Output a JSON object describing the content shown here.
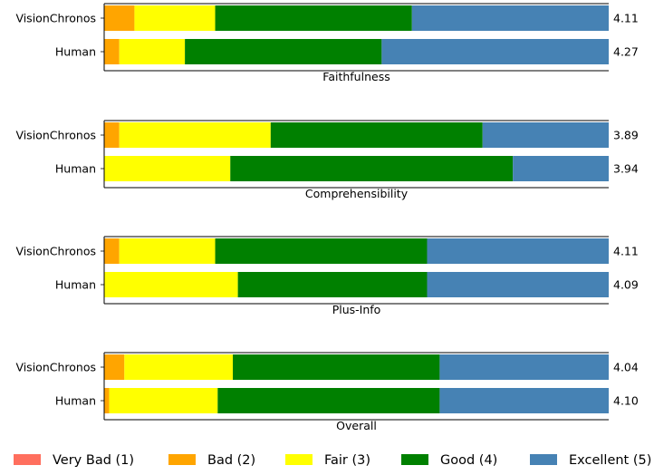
{
  "chart_data": {
    "type": "bar",
    "orientation": "horizontal",
    "stacked": true,
    "normalized_to": 1.0,
    "xlim": [
      0,
      1
    ],
    "legend_position": "bottom",
    "levels": [
      "Very Bad (1)",
      "Bad (2)",
      "Fair (3)",
      "Good (4)",
      "Excellent (5)"
    ],
    "colors": [
      "#FF6F5E",
      "#FFA500",
      "#FFFF00",
      "#008000",
      "#4682B4"
    ],
    "panels": [
      {
        "title": "Faithfulness",
        "rows": [
          {
            "label": "VisionChronos",
            "score": "4.11",
            "shares": [
              0.0,
              0.06,
              0.16,
              0.39,
              0.39
            ]
          },
          {
            "label": "Human",
            "score": "4.27",
            "shares": [
              0.0,
              0.03,
              0.13,
              0.39,
              0.45
            ]
          }
        ]
      },
      {
        "title": "Comprehensibility",
        "rows": [
          {
            "label": "VisionChronos",
            "score": "3.89",
            "shares": [
              0.0,
              0.03,
              0.3,
              0.42,
              0.25
            ]
          },
          {
            "label": "Human",
            "score": "3.94",
            "shares": [
              0.0,
              0.0,
              0.25,
              0.56,
              0.19
            ]
          }
        ]
      },
      {
        "title": "Plus-Info",
        "rows": [
          {
            "label": "VisionChronos",
            "score": "4.11",
            "shares": [
              0.0,
              0.03,
              0.19,
              0.42,
              0.36
            ]
          },
          {
            "label": "Human",
            "score": "4.09",
            "shares": [
              0.0,
              0.0,
              0.265,
              0.375,
              0.36
            ]
          }
        ]
      },
      {
        "title": "Overall",
        "rows": [
          {
            "label": "VisionChronos",
            "score": "4.04",
            "shares": [
              0.0,
              0.04,
              0.215,
              0.41,
              0.335
            ]
          },
          {
            "label": "Human",
            "score": "4.10",
            "shares": [
              0.0,
              0.01,
              0.215,
              0.44,
              0.335
            ]
          }
        ]
      }
    ]
  }
}
